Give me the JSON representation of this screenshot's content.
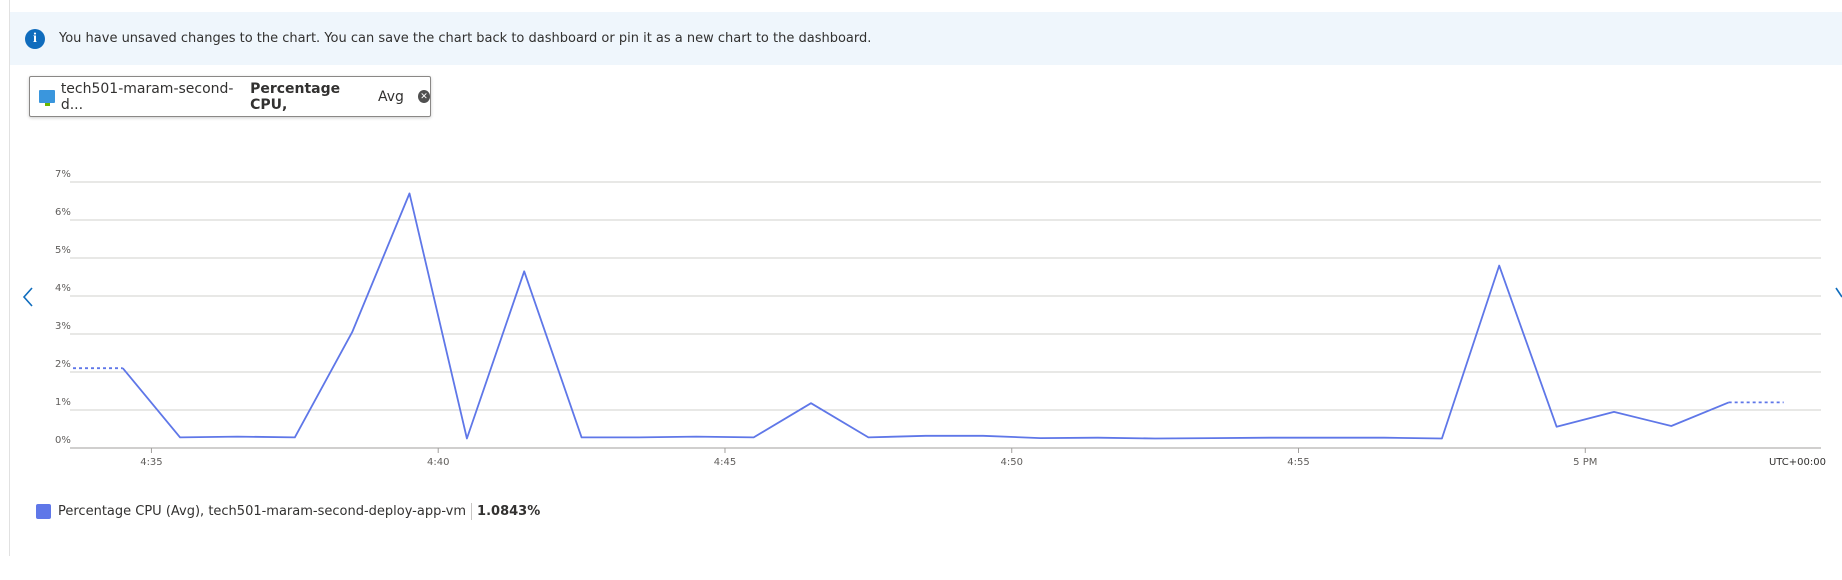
{
  "banner": {
    "message": "You have unsaved changes to the chart. You can save the chart back to dashboard or pin it as a new chart to the dashboard."
  },
  "metric_chip": {
    "resource": "tech501-maram-second-d...",
    "metric": "Percentage CPU,",
    "aggregation": "Avg"
  },
  "chart_data": {
    "type": "line",
    "x": [
      34.5,
      35.5,
      36.5,
      37.5,
      38.5,
      39.5,
      40.5,
      41.5,
      42.5,
      43.5,
      44.5,
      45.5,
      46.5,
      47.5,
      48.5,
      49.5,
      50.5,
      51.5,
      52.5,
      53.5,
      54.5,
      55.5,
      56.5,
      57.5,
      58.5,
      59.5,
      60.5,
      61.5,
      62.5
    ],
    "series": [
      {
        "name": "Percentage CPU (Avg), tech501-maram-second-deploy-app-vm",
        "color": "#5f77e8",
        "values": [
          2.1,
          0.28,
          0.3,
          0.28,
          3.05,
          6.7,
          0.25,
          4.65,
          0.28,
          0.28,
          0.3,
          0.28,
          1.18,
          0.28,
          0.32,
          0.32,
          0.26,
          0.27,
          0.25,
          0.26,
          0.27,
          0.27,
          0.27,
          0.25,
          4.8,
          0.56,
          0.95,
          0.58,
          1.2
        ]
      }
    ],
    "summary": {
      "value": 1.0843,
      "label": "1.0843%"
    },
    "xlim": [
      33.58,
      64.11
    ],
    "xticks": [
      {
        "value": 35,
        "label": "4:35"
      },
      {
        "value": 40,
        "label": "4:40"
      },
      {
        "value": 45,
        "label": "4:45"
      },
      {
        "value": 50,
        "label": "4:50"
      },
      {
        "value": 55,
        "label": "4:55"
      },
      {
        "value": 60,
        "label": "5 PM"
      }
    ],
    "timezone": "UTC+00:00",
    "ylim": [
      0,
      7
    ],
    "yticks": [
      {
        "value": 0,
        "label": "0%"
      },
      {
        "value": 1,
        "label": "1%"
      },
      {
        "value": 2,
        "label": "2%"
      },
      {
        "value": 3,
        "label": "3%"
      },
      {
        "value": 4,
        "label": "4%"
      },
      {
        "value": 5,
        "label": "5%"
      },
      {
        "value": 6,
        "label": "6%"
      },
      {
        "value": 7,
        "label": "7%"
      }
    ],
    "grid": true
  }
}
